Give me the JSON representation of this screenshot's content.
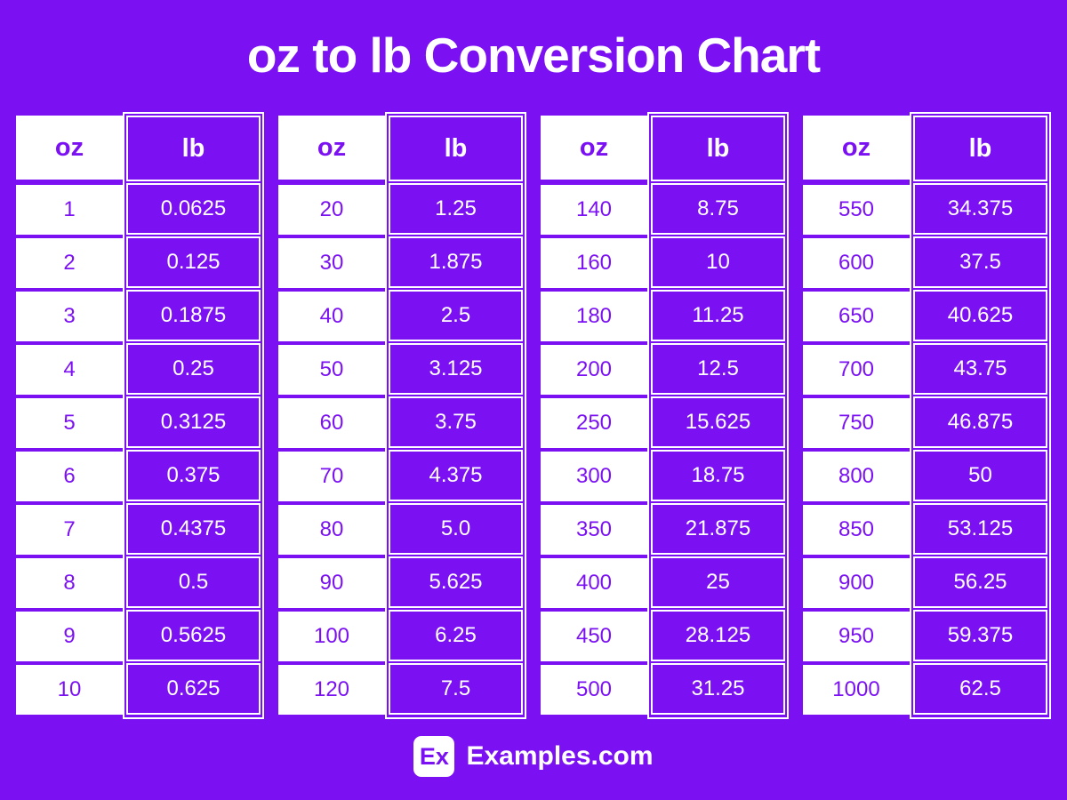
{
  "page": {
    "title": "oz to lb Conversion Chart",
    "colors": {
      "background": "#7B11F3",
      "cell_fill": "#7B11F3",
      "text_on_purple": "#FFFFFF",
      "text_on_white": "#7B11F3",
      "border": "#FFFFFF"
    }
  },
  "table": {
    "col_headers": {
      "oz": "oz",
      "lb": "lb"
    },
    "groups": [
      {
        "rows": [
          {
            "oz": "1",
            "lb": "0.0625"
          },
          {
            "oz": "2",
            "lb": "0.125"
          },
          {
            "oz": "3",
            "lb": "0.1875"
          },
          {
            "oz": "4",
            "lb": "0.25"
          },
          {
            "oz": "5",
            "lb": "0.3125"
          },
          {
            "oz": "6",
            "lb": "0.375"
          },
          {
            "oz": "7",
            "lb": "0.4375"
          },
          {
            "oz": "8",
            "lb": "0.5"
          },
          {
            "oz": "9",
            "lb": "0.5625"
          },
          {
            "oz": "10",
            "lb": "0.625"
          }
        ]
      },
      {
        "rows": [
          {
            "oz": "20",
            "lb": "1.25"
          },
          {
            "oz": "30",
            "lb": "1.875"
          },
          {
            "oz": "40",
            "lb": "2.5"
          },
          {
            "oz": "50",
            "lb": "3.125"
          },
          {
            "oz": "60",
            "lb": "3.75"
          },
          {
            "oz": "70",
            "lb": "4.375"
          },
          {
            "oz": "80",
            "lb": "5.0"
          },
          {
            "oz": "90",
            "lb": "5.625"
          },
          {
            "oz": "100",
            "lb": "6.25"
          },
          {
            "oz": "120",
            "lb": "7.5"
          }
        ]
      },
      {
        "rows": [
          {
            "oz": "140",
            "lb": "8.75"
          },
          {
            "oz": "160",
            "lb": "10"
          },
          {
            "oz": "180",
            "lb": "11.25"
          },
          {
            "oz": "200",
            "lb": "12.5"
          },
          {
            "oz": "250",
            "lb": "15.625"
          },
          {
            "oz": "300",
            "lb": "18.75"
          },
          {
            "oz": "350",
            "lb": "21.875"
          },
          {
            "oz": "400",
            "lb": "25"
          },
          {
            "oz": "450",
            "lb": "28.125"
          },
          {
            "oz": "500",
            "lb": "31.25"
          }
        ]
      },
      {
        "rows": [
          {
            "oz": "550",
            "lb": "34.375"
          },
          {
            "oz": "600",
            "lb": "37.5"
          },
          {
            "oz": "650",
            "lb": "40.625"
          },
          {
            "oz": "700",
            "lb": "43.75"
          },
          {
            "oz": "750",
            "lb": "46.875"
          },
          {
            "oz": "800",
            "lb": "50"
          },
          {
            "oz": "850",
            "lb": "53.125"
          },
          {
            "oz": "900",
            "lb": "56.25"
          },
          {
            "oz": "950",
            "lb": "59.375"
          },
          {
            "oz": "1000",
            "lb": "62.5"
          }
        ]
      }
    ]
  },
  "footer": {
    "logo_text": "Ex",
    "site_name": "Examples.com"
  },
  "chart_data": {
    "type": "table",
    "title": "oz to lb Conversion Chart",
    "columns": [
      "oz",
      "lb"
    ],
    "rows": [
      [
        1,
        0.0625
      ],
      [
        2,
        0.125
      ],
      [
        3,
        0.1875
      ],
      [
        4,
        0.25
      ],
      [
        5,
        0.3125
      ],
      [
        6,
        0.375
      ],
      [
        7,
        0.4375
      ],
      [
        8,
        0.5
      ],
      [
        9,
        0.5625
      ],
      [
        10,
        0.625
      ],
      [
        20,
        1.25
      ],
      [
        30,
        1.875
      ],
      [
        40,
        2.5
      ],
      [
        50,
        3.125
      ],
      [
        60,
        3.75
      ],
      [
        70,
        4.375
      ],
      [
        80,
        5.0
      ],
      [
        90,
        5.625
      ],
      [
        100,
        6.25
      ],
      [
        120,
        7.5
      ],
      [
        140,
        8.75
      ],
      [
        160,
        10
      ],
      [
        180,
        11.25
      ],
      [
        200,
        12.5
      ],
      [
        250,
        15.625
      ],
      [
        300,
        18.75
      ],
      [
        350,
        21.875
      ],
      [
        400,
        25
      ],
      [
        450,
        28.125
      ],
      [
        500,
        31.25
      ],
      [
        550,
        34.375
      ],
      [
        600,
        37.5
      ],
      [
        650,
        40.625
      ],
      [
        700,
        43.75
      ],
      [
        750,
        46.875
      ],
      [
        800,
        50
      ],
      [
        850,
        53.125
      ],
      [
        900,
        56.25
      ],
      [
        950,
        59.375
      ],
      [
        1000,
        62.5
      ]
    ]
  }
}
